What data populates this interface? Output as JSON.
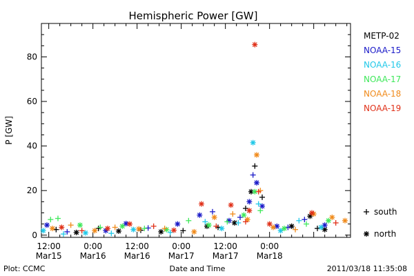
{
  "chart_data": {
    "type": "scatter",
    "title": "Hemispheric Power [GW]",
    "xlabel": "Date and Time",
    "ylabel": "P [GW]",
    "xlim": [
      "2011-03-15T10:00",
      "2011-03-18T22:00"
    ],
    "ylim": [
      -1,
      95
    ],
    "y_ticks": [
      0,
      20,
      40,
      60,
      80
    ],
    "x_ticks": [
      {
        "t": "2011-03-15T12:00",
        "line1": "12:00",
        "line2": "Mar15"
      },
      {
        "t": "2011-03-16T00:00",
        "line1": "0:00",
        "line2": "Mar16"
      },
      {
        "t": "2011-03-16T12:00",
        "line1": "12:00",
        "line2": "Mar16"
      },
      {
        "t": "2011-03-17T00:00",
        "line1": "0:00",
        "line2": "Mar17"
      },
      {
        "t": "2011-03-17T12:00",
        "line1": "12:00",
        "line2": "Mar17"
      },
      {
        "t": "2011-03-18T00:00",
        "line1": "0:00",
        "line2": "Mar18"
      }
    ],
    "legend_placement": "right",
    "series": [
      {
        "name": "METP-02",
        "color": "#000000",
        "points": [
          {
            "t": "2011-03-15T14:00",
            "v": 2.5,
            "h": "south"
          },
          {
            "t": "2011-03-15T19:30",
            "v": 1.2,
            "h": "north"
          },
          {
            "t": "2011-03-16T01:30",
            "v": 3.0,
            "h": "south"
          },
          {
            "t": "2011-03-16T07:00",
            "v": 1.8,
            "h": "north"
          },
          {
            "t": "2011-03-16T13:00",
            "v": 2.2,
            "h": "south"
          },
          {
            "t": "2011-03-16T18:30",
            "v": 1.5,
            "h": "north"
          },
          {
            "t": "2011-03-17T00:30",
            "v": 2.0,
            "h": "south"
          },
          {
            "t": "2011-03-17T07:00",
            "v": 4.0,
            "h": "north"
          },
          {
            "t": "2011-03-17T10:00",
            "v": 3.5,
            "h": "south"
          },
          {
            "t": "2011-03-17T14:30",
            "v": 5.5,
            "h": "north"
          },
          {
            "t": "2011-03-17T17:30",
            "v": 12.0,
            "h": "south"
          },
          {
            "t": "2011-03-17T19:00",
            "v": 19.5,
            "h": "north"
          },
          {
            "t": "2011-03-17T20:00",
            "v": 31.0,
            "h": "south"
          },
          {
            "t": "2011-03-17T22:00",
            "v": 17.0,
            "h": "south"
          },
          {
            "t": "2011-03-18T06:00",
            "v": 4.0,
            "h": "north"
          },
          {
            "t": "2011-03-18T11:00",
            "v": 8.5,
            "h": "north"
          },
          {
            "t": "2011-03-18T13:00",
            "v": 3.0,
            "h": "south"
          },
          {
            "t": "2011-03-18T15:00",
            "v": 2.5,
            "h": "north"
          }
        ]
      },
      {
        "name": "NOAA-15",
        "color": "#1a1ac8",
        "points": [
          {
            "t": "2011-03-15T11:30",
            "v": 4.5,
            "h": "north"
          },
          {
            "t": "2011-03-15T17:00",
            "v": 1.5,
            "h": "south"
          },
          {
            "t": "2011-03-16T03:30",
            "v": 2.0,
            "h": "north"
          },
          {
            "t": "2011-03-16T09:00",
            "v": 5.2,
            "h": "north"
          },
          {
            "t": "2011-03-16T15:00",
            "v": 3.2,
            "h": "south"
          },
          {
            "t": "2011-03-16T23:00",
            "v": 5.0,
            "h": "north"
          },
          {
            "t": "2011-03-17T05:00",
            "v": 9.0,
            "h": "north"
          },
          {
            "t": "2011-03-17T08:30",
            "v": 10.5,
            "h": "south"
          },
          {
            "t": "2011-03-17T13:00",
            "v": 6.5,
            "h": "north"
          },
          {
            "t": "2011-03-17T16:00",
            "v": 8.0,
            "h": "south"
          },
          {
            "t": "2011-03-17T18:30",
            "v": 15.0,
            "h": "north"
          },
          {
            "t": "2011-03-17T19:30",
            "v": 27.0,
            "h": "south"
          },
          {
            "t": "2011-03-17T20:30",
            "v": 23.5,
            "h": "north"
          },
          {
            "t": "2011-03-17T22:00",
            "v": 13.0,
            "h": "north"
          },
          {
            "t": "2011-03-18T02:00",
            "v": 4.0,
            "h": "north"
          },
          {
            "t": "2011-03-18T05:00",
            "v": 3.5,
            "h": "south"
          },
          {
            "t": "2011-03-18T09:30",
            "v": 7.0,
            "h": "south"
          },
          {
            "t": "2011-03-18T15:00",
            "v": 4.5,
            "h": "north"
          }
        ]
      },
      {
        "name": "NOAA-16",
        "color": "#20c8e8",
        "points": [
          {
            "t": "2011-03-15T10:30",
            "v": 2.0,
            "h": "north"
          },
          {
            "t": "2011-03-15T16:00",
            "v": 0.5,
            "h": "south"
          },
          {
            "t": "2011-03-15T22:00",
            "v": 1.0,
            "h": "north"
          },
          {
            "t": "2011-03-16T05:00",
            "v": 0.8,
            "h": "south"
          },
          {
            "t": "2011-03-16T11:00",
            "v": 2.5,
            "h": "north"
          },
          {
            "t": "2011-03-16T21:00",
            "v": 1.2,
            "h": "south"
          },
          {
            "t": "2011-03-17T06:30",
            "v": 6.0,
            "h": "south"
          },
          {
            "t": "2011-03-17T11:00",
            "v": 3.0,
            "h": "north"
          },
          {
            "t": "2011-03-17T15:30",
            "v": 5.5,
            "h": "south"
          },
          {
            "t": "2011-03-17T19:30",
            "v": 41.5,
            "h": "north"
          },
          {
            "t": "2011-03-17T21:00",
            "v": 14.0,
            "h": "south"
          },
          {
            "t": "2011-03-18T03:00",
            "v": 2.0,
            "h": "north"
          },
          {
            "t": "2011-03-18T08:00",
            "v": 6.5,
            "h": "south"
          },
          {
            "t": "2011-03-18T14:00",
            "v": 3.5,
            "h": "north"
          }
        ]
      },
      {
        "name": "NOAA-17",
        "color": "#3ee85a",
        "points": [
          {
            "t": "2011-03-15T12:30",
            "v": 7.0,
            "h": "south"
          },
          {
            "t": "2011-03-15T14:30",
            "v": 7.5,
            "h": "south"
          },
          {
            "t": "2011-03-15T20:30",
            "v": 4.5,
            "h": "north"
          },
          {
            "t": "2011-03-16T02:00",
            "v": 3.5,
            "h": "south"
          },
          {
            "t": "2011-03-16T08:00",
            "v": 4.0,
            "h": "north"
          },
          {
            "t": "2011-03-16T14:00",
            "v": 3.0,
            "h": "south"
          },
          {
            "t": "2011-03-16T20:00",
            "v": 2.5,
            "h": "north"
          },
          {
            "t": "2011-03-17T02:00",
            "v": 6.5,
            "h": "south"
          },
          {
            "t": "2011-03-17T07:30",
            "v": 4.5,
            "h": "north"
          },
          {
            "t": "2011-03-17T12:30",
            "v": 6.0,
            "h": "south"
          },
          {
            "t": "2011-03-17T17:00",
            "v": 9.0,
            "h": "north"
          },
          {
            "t": "2011-03-17T20:00",
            "v": 19.5,
            "h": "north"
          },
          {
            "t": "2011-03-17T21:30",
            "v": 11.0,
            "h": "south"
          },
          {
            "t": "2011-03-18T04:00",
            "v": 3.0,
            "h": "north"
          },
          {
            "t": "2011-03-18T10:00",
            "v": 5.0,
            "h": "south"
          },
          {
            "t": "2011-03-18T16:00",
            "v": 6.5,
            "h": "north"
          }
        ]
      },
      {
        "name": "NOAA-18",
        "color": "#f08a1a",
        "points": [
          {
            "t": "2011-03-15T13:00",
            "v": 3.0,
            "h": "north"
          },
          {
            "t": "2011-03-15T18:00",
            "v": 4.5,
            "h": "south"
          },
          {
            "t": "2011-03-16T00:30",
            "v": 2.0,
            "h": "north"
          },
          {
            "t": "2011-03-16T06:00",
            "v": 3.5,
            "h": "south"
          },
          {
            "t": "2011-03-16T12:30",
            "v": 2.8,
            "h": "north"
          },
          {
            "t": "2011-03-16T19:30",
            "v": 3.0,
            "h": "south"
          },
          {
            "t": "2011-03-17T03:30",
            "v": 1.5,
            "h": "north"
          },
          {
            "t": "2011-03-17T09:00",
            "v": 8.0,
            "h": "north"
          },
          {
            "t": "2011-03-17T14:00",
            "v": 9.5,
            "h": "south"
          },
          {
            "t": "2011-03-17T18:00",
            "v": 7.0,
            "h": "north"
          },
          {
            "t": "2011-03-17T20:30",
            "v": 36.0,
            "h": "north"
          },
          {
            "t": "2011-03-17T21:30",
            "v": 20.0,
            "h": "south"
          },
          {
            "t": "2011-03-18T01:00",
            "v": 3.5,
            "h": "north"
          },
          {
            "t": "2011-03-18T07:00",
            "v": 2.5,
            "h": "south"
          },
          {
            "t": "2011-03-18T12:00",
            "v": 9.5,
            "h": "north"
          },
          {
            "t": "2011-03-18T17:00",
            "v": 8.0,
            "h": "north"
          },
          {
            "t": "2011-03-18T20:30",
            "v": 6.5,
            "h": "north"
          }
        ]
      },
      {
        "name": "NOAA-19",
        "color": "#e03018",
        "points": [
          {
            "t": "2011-03-15T15:30",
            "v": 3.5,
            "h": "north"
          },
          {
            "t": "2011-03-15T21:00",
            "v": 2.0,
            "h": "south"
          },
          {
            "t": "2011-03-16T04:00",
            "v": 3.0,
            "h": "north"
          },
          {
            "t": "2011-03-16T10:00",
            "v": 5.0,
            "h": "north"
          },
          {
            "t": "2011-03-16T16:30",
            "v": 4.0,
            "h": "south"
          },
          {
            "t": "2011-03-16T22:00",
            "v": 2.2,
            "h": "north"
          },
          {
            "t": "2011-03-17T05:30",
            "v": 14.0,
            "h": "north"
          },
          {
            "t": "2011-03-17T09:30",
            "v": 4.0,
            "h": "south"
          },
          {
            "t": "2011-03-17T13:30",
            "v": 13.5,
            "h": "north"
          },
          {
            "t": "2011-03-17T17:30",
            "v": 6.0,
            "h": "south"
          },
          {
            "t": "2011-03-17T18:30",
            "v": 11.0,
            "h": "north"
          },
          {
            "t": "2011-03-17T20:00",
            "v": 85.5,
            "h": "north"
          },
          {
            "t": "2011-03-17T21:00",
            "v": 19.5,
            "h": "south"
          },
          {
            "t": "2011-03-18T00:00",
            "v": 5.0,
            "h": "north"
          },
          {
            "t": "2011-03-18T11:30",
            "v": 10.0,
            "h": "north"
          },
          {
            "t": "2011-03-18T18:00",
            "v": 5.5,
            "h": "south"
          }
        ]
      }
    ],
    "hemisphere_legend": [
      {
        "symbol": "+",
        "label": "south"
      },
      {
        "symbol": "*",
        "label": "north"
      }
    ]
  },
  "footer": {
    "left": "Plot: CCMC",
    "right": "2011/03/18 11:35:08"
  }
}
